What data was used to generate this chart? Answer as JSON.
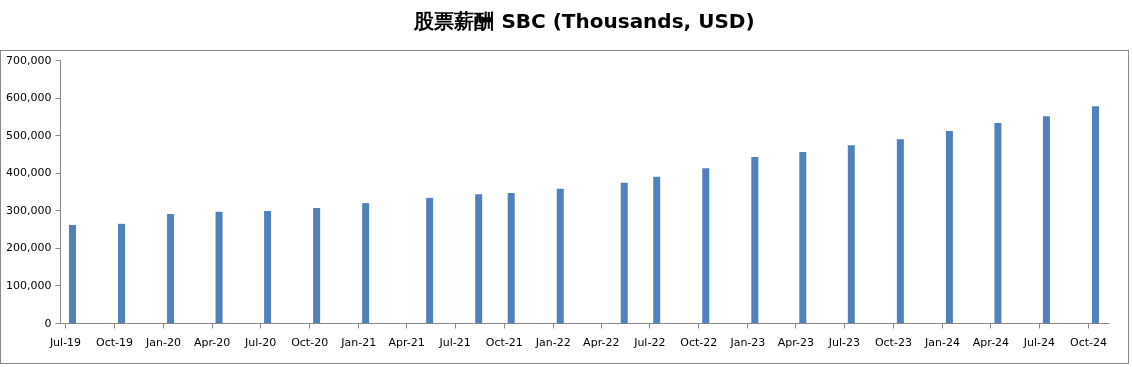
{
  "chart_data": {
    "type": "bar",
    "title": "股票薪酬 SBC (Thousands, USD)",
    "x": [
      "2019-07-15",
      "2019-10-15",
      "2020-01-15",
      "2020-04-15",
      "2020-07-15",
      "2020-10-15",
      "2021-01-15",
      "2021-05-15",
      "2021-08-15",
      "2021-10-15",
      "2022-01-15",
      "2022-05-15",
      "2022-07-15",
      "2022-10-15",
      "2023-01-15",
      "2023-04-15",
      "2023-07-15",
      "2023-10-15",
      "2024-01-15",
      "2024-04-15",
      "2024-07-15",
      "2024-10-15"
    ],
    "values": [
      261000,
      264000,
      290000,
      296000,
      298000,
      306000,
      319000,
      333000,
      343000,
      346000,
      357000,
      373000,
      389000,
      412000,
      442000,
      455000,
      473000,
      489000,
      511000,
      532000,
      550000,
      577000
    ],
    "color": "#4f81bd",
    "xlim": [
      "2019-07-01",
      "2024-10-31"
    ],
    "xticks": [
      {
        "value": "2019-07-01",
        "label": "Jul-19"
      },
      {
        "value": "2019-10-01",
        "label": "Oct-19"
      },
      {
        "value": "2020-01-01",
        "label": "Jan-20"
      },
      {
        "value": "2020-04-01",
        "label": "Apr-20"
      },
      {
        "value": "2020-07-01",
        "label": "Jul-20"
      },
      {
        "value": "2020-10-01",
        "label": "Oct-20"
      },
      {
        "value": "2021-01-01",
        "label": "Jan-21"
      },
      {
        "value": "2021-04-01",
        "label": "Apr-21"
      },
      {
        "value": "2021-07-01",
        "label": "Jul-21"
      },
      {
        "value": "2021-10-01",
        "label": "Oct-21"
      },
      {
        "value": "2022-01-01",
        "label": "Jan-22"
      },
      {
        "value": "2022-04-01",
        "label": "Apr-22"
      },
      {
        "value": "2022-07-01",
        "label": "Jul-22"
      },
      {
        "value": "2022-10-01",
        "label": "Oct-22"
      },
      {
        "value": "2023-01-01",
        "label": "Jan-23"
      },
      {
        "value": "2023-04-01",
        "label": "Apr-23"
      },
      {
        "value": "2023-07-01",
        "label": "Jul-23"
      },
      {
        "value": "2023-10-01",
        "label": "Oct-23"
      },
      {
        "value": "2024-01-01",
        "label": "Jan-24"
      },
      {
        "value": "2024-04-01",
        "label": "Apr-24"
      },
      {
        "value": "2024-07-01",
        "label": "Jul-24"
      },
      {
        "value": "2024-10-01",
        "label": "Oct-24"
      }
    ],
    "ylim": [
      0,
      700000
    ],
    "yticks": [
      {
        "value": 0,
        "label": "0"
      },
      {
        "value": 100000,
        "label": "100,000"
      },
      {
        "value": 200000,
        "label": "200,000"
      },
      {
        "value": 300000,
        "label": "300,000"
      },
      {
        "value": 400000,
        "label": "400,000"
      },
      {
        "value": 500000,
        "label": "500,000"
      },
      {
        "value": 600000,
        "label": "600,000"
      },
      {
        "value": 700000,
        "label": "700,000"
      }
    ],
    "grid": false
  }
}
